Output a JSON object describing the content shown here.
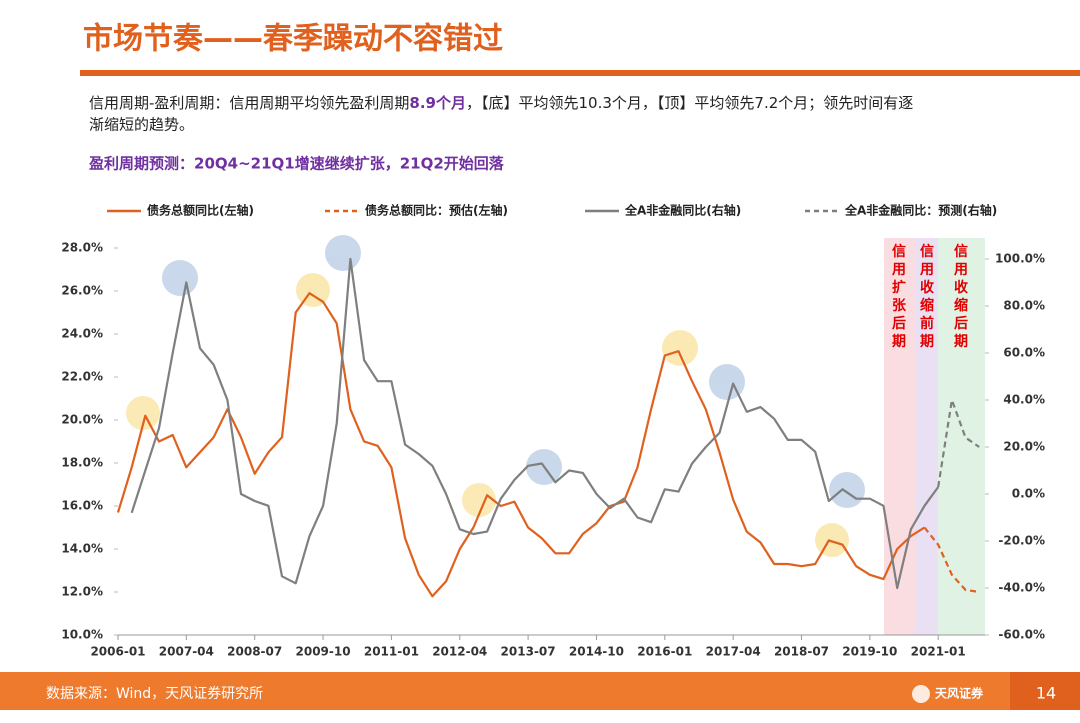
{
  "title": "市场节奏——春季躁动不容错过",
  "text": [
    "信用周期-盈利周期：信用周期平均领先盈利周期",
    "8.9个月",
    "，【底】平均领先10.3个月，【顶】平均领先7.2个月；领先时间有逐",
    "渐缩短的趋势。"
  ],
  "subtitle": "盈利周期预测：20Q4~21Q1增速继续扩张，21Q2开始回落",
  "chart_data": {
    "type": "line",
    "x": [
      "2006-01",
      "2006-04",
      "2006-07",
      "2006-10",
      "2007-01",
      "2007-04",
      "2007-07",
      "2007-10",
      "2008-01",
      "2008-04",
      "2008-07",
      "2008-10",
      "2009-01",
      "2009-04",
      "2009-07",
      "2009-10",
      "2010-01",
      "2010-04",
      "2010-07",
      "2010-10",
      "2011-01",
      "2011-04",
      "2011-07",
      "2011-10",
      "2012-01",
      "2012-04",
      "2012-07",
      "2012-10",
      "2013-01",
      "2013-04",
      "2013-07",
      "2013-10",
      "2014-01",
      "2014-04",
      "2014-07",
      "2014-10",
      "2015-01",
      "2015-04",
      "2015-07",
      "2015-10",
      "2016-01",
      "2016-04",
      "2016-07",
      "2016-10",
      "2017-01",
      "2017-04",
      "2017-07",
      "2017-10",
      "2018-01",
      "2018-04",
      "2018-07",
      "2018-10",
      "2019-01",
      "2019-04",
      "2019-07",
      "2019-10",
      "2020-01",
      "2020-04",
      "2020-07",
      "2020-10",
      "2021-01",
      "2021-04",
      "2021-07",
      "2021-10"
    ],
    "xticks": [
      "2006-01",
      "2007-04",
      "2008-07",
      "2009-10",
      "2011-01",
      "2012-04",
      "2013-07",
      "2014-10",
      "2016-01",
      "2017-04",
      "2018-07",
      "2019-10",
      "2021-01"
    ],
    "ylim": [
      10,
      28
    ],
    "yticks": [
      {
        "value": 10,
        "label": "10.0%"
      },
      {
        "value": 12,
        "label": "12.0%"
      },
      {
        "value": 14,
        "label": "14.0%"
      },
      {
        "value": 16,
        "label": "16.0%"
      },
      {
        "value": 18,
        "label": "18.0%"
      },
      {
        "value": 20,
        "label": "20.0%"
      },
      {
        "value": 22,
        "label": "22.0%"
      },
      {
        "value": 24,
        "label": "24.0%"
      },
      {
        "value": 26,
        "label": "26.0%"
      },
      {
        "value": 28,
        "label": "28.0%"
      }
    ],
    "y2lim": [
      -60,
      100
    ],
    "y2ticks": [
      {
        "value": -60,
        "label": "-60.0%"
      },
      {
        "value": -40,
        "label": "-40.0%"
      },
      {
        "value": -20,
        "label": "-20.0%"
      },
      {
        "value": 0,
        "label": "0.0%"
      },
      {
        "value": 20,
        "label": "20.0%"
      },
      {
        "value": 40,
        "label": "40.0%"
      },
      {
        "value": 60,
        "label": "60.0%"
      },
      {
        "value": 80,
        "label": "80.0%"
      },
      {
        "value": 100,
        "label": "100.0%"
      }
    ],
    "series": [
      {
        "name": "债务总额同比(左轴)",
        "color": "#E0601E",
        "dashed": false,
        "values": [
          15.7,
          17.8,
          20.2,
          19.0,
          19.3,
          17.8,
          18.5,
          19.2,
          20.5,
          19.2,
          17.5,
          18.5,
          19.2,
          25.0,
          25.9,
          25.5,
          24.5,
          20.5,
          19.0,
          18.8,
          17.8,
          14.5,
          12.8,
          11.8,
          12.5,
          14.0,
          15.0,
          16.5,
          16.0,
          16.2,
          15.0,
          14.5,
          13.8,
          13.8,
          14.7,
          15.2,
          16.0,
          16.2,
          17.8,
          20.5,
          23.0,
          23.2,
          21.8,
          20.5,
          18.5,
          16.3,
          14.8,
          14.3,
          13.3,
          13.3,
          13.2,
          13.3,
          14.4,
          14.2,
          13.2,
          12.8,
          12.6,
          14.0,
          14.6,
          15.0,
          null,
          null,
          null,
          null
        ]
      },
      {
        "name": "债务总额同比：预估(左轴)",
        "color": "#E0601E",
        "dashed": true,
        "values": [
          null,
          null,
          null,
          null,
          null,
          null,
          null,
          null,
          null,
          null,
          null,
          null,
          null,
          null,
          null,
          null,
          null,
          null,
          null,
          null,
          null,
          null,
          null,
          null,
          null,
          null,
          null,
          null,
          null,
          null,
          null,
          null,
          null,
          null,
          null,
          null,
          null,
          null,
          null,
          null,
          null,
          null,
          null,
          null,
          null,
          null,
          null,
          null,
          null,
          null,
          null,
          null,
          null,
          null,
          null,
          null,
          null,
          null,
          null,
          15.0,
          14.2,
          12.8,
          12.1,
          12.0
        ]
      },
      {
        "name": "全A非金融同比(右轴)",
        "color": "#7F7F7F",
        "dashed": false,
        "axis": "y2",
        "values": [
          null,
          -8,
          10,
          28,
          60,
          90,
          62,
          55,
          40,
          0,
          -3,
          -5,
          -35,
          -38,
          -18,
          -5,
          30,
          100,
          57,
          48,
          48,
          21,
          17,
          12,
          0,
          -15,
          -17,
          -16,
          -2,
          6,
          12,
          13,
          5,
          10,
          9,
          0,
          -6,
          -2,
          -10,
          -12,
          2,
          1,
          13,
          20,
          26,
          47,
          35,
          37,
          32,
          23,
          23,
          18,
          -3,
          2,
          -2,
          -2,
          -5,
          -40,
          -15,
          -5,
          3,
          null,
          null,
          null
        ]
      },
      {
        "name": "全A非金融同比：预测(右轴)",
        "color": "#7F7F7F",
        "dashed": true,
        "axis": "y2",
        "values": [
          null,
          null,
          null,
          null,
          null,
          null,
          null,
          null,
          null,
          null,
          null,
          null,
          null,
          null,
          null,
          null,
          null,
          null,
          null,
          null,
          null,
          null,
          null,
          null,
          null,
          null,
          null,
          null,
          null,
          null,
          null,
          null,
          null,
          null,
          null,
          null,
          null,
          null,
          null,
          null,
          null,
          null,
          null,
          null,
          null,
          null,
          null,
          null,
          null,
          null,
          null,
          null,
          null,
          null,
          null,
          null,
          null,
          null,
          null,
          null,
          3,
          40,
          24,
          20
        ]
      }
    ],
    "annotations": [
      "信用扩张后期",
      "信用收缩前期",
      "信用收缩后期"
    ]
  },
  "footer": {
    "source": "数据来源：Wind，天风证券研究所",
    "logo": "天风证券",
    "page": "14"
  }
}
